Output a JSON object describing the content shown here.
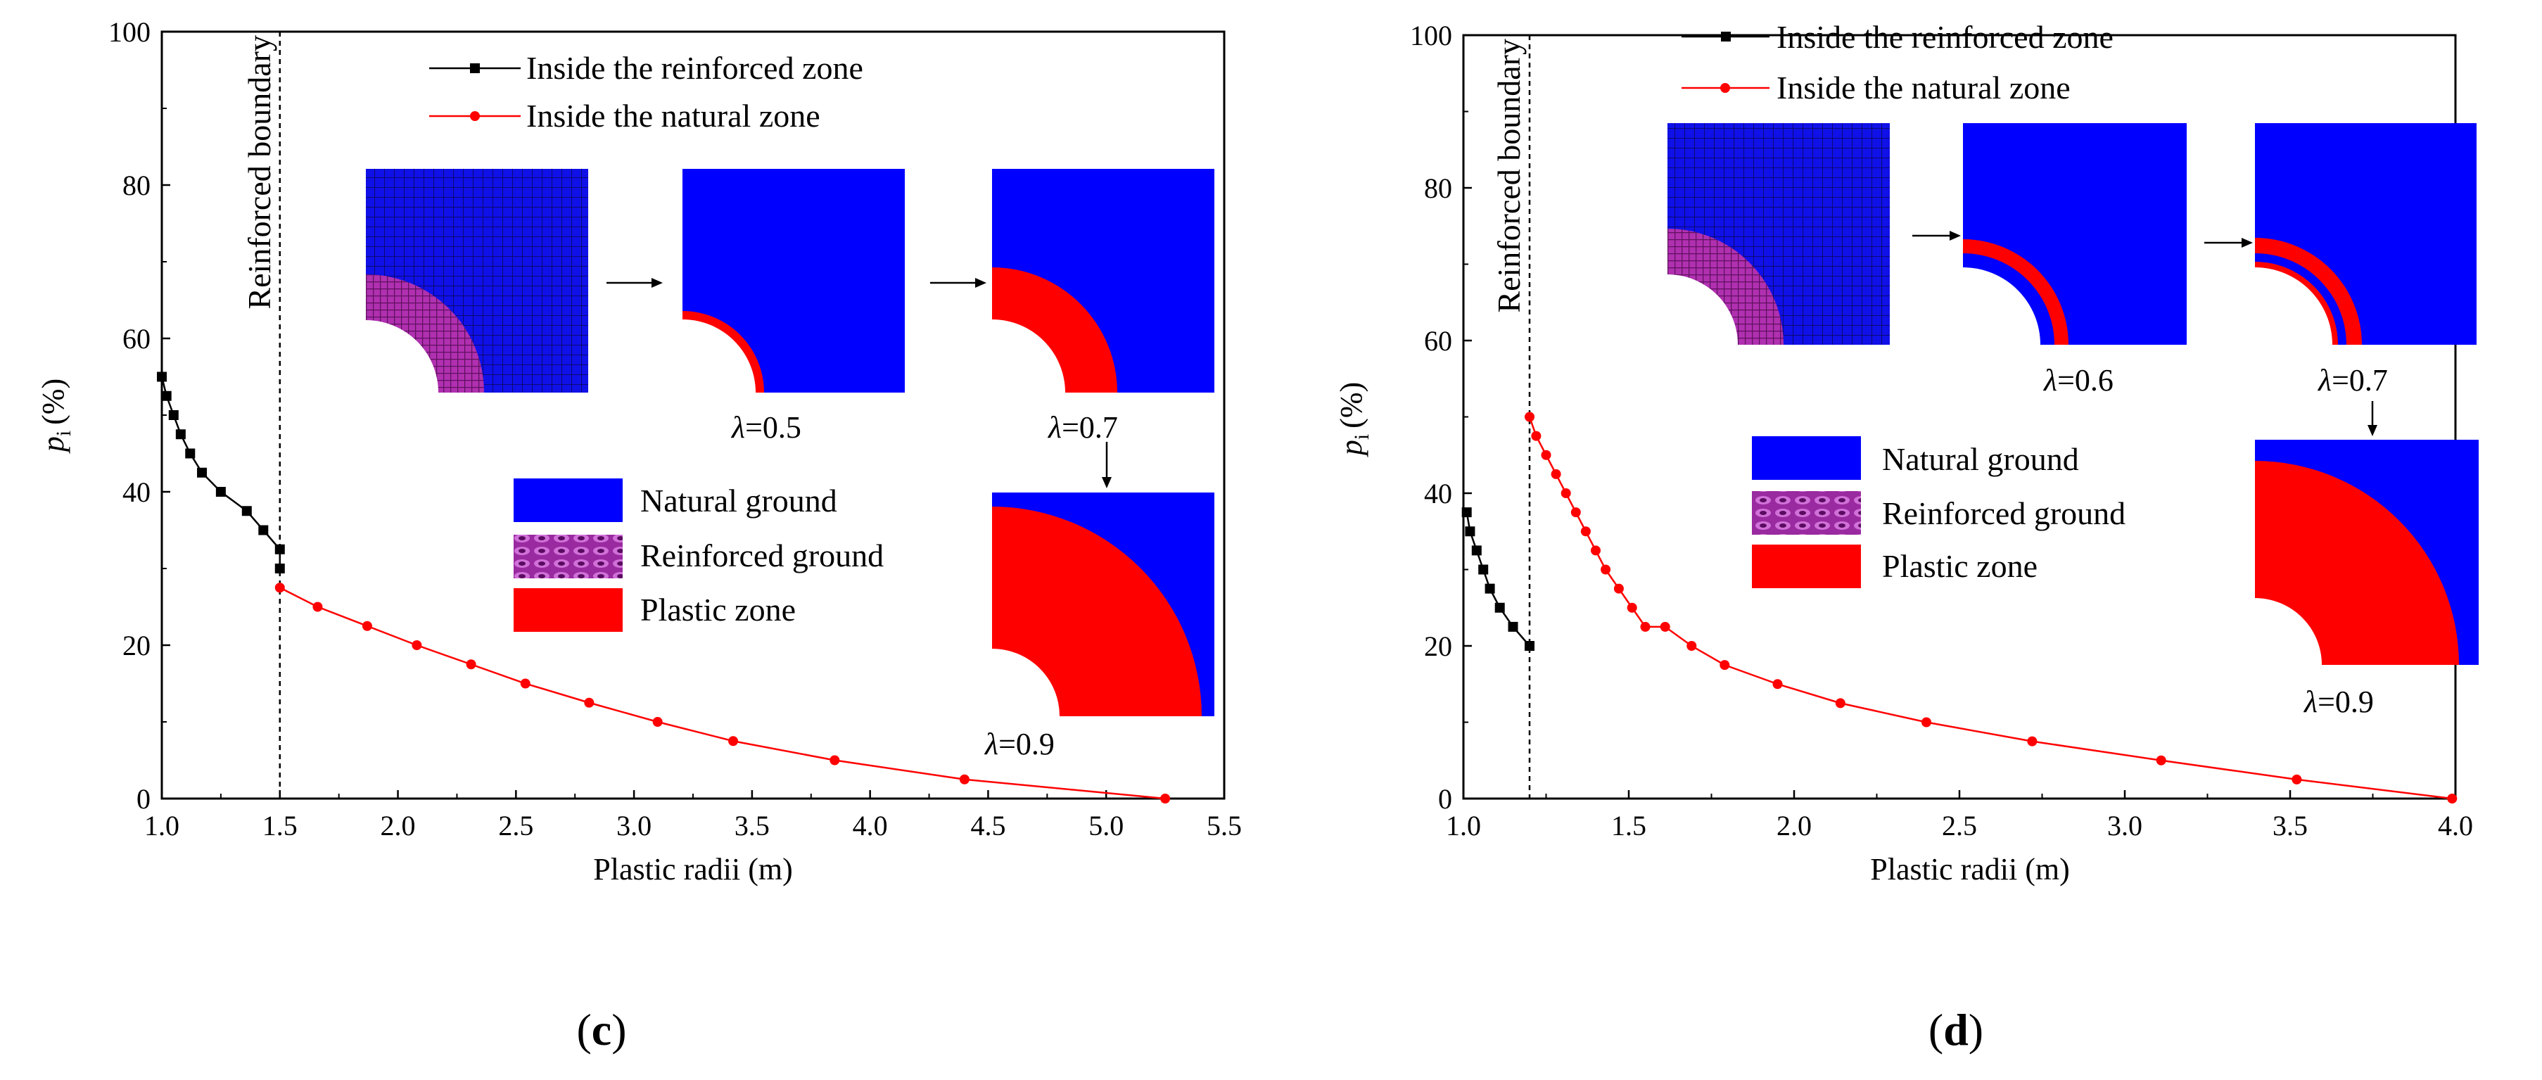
{
  "colors": {
    "reinforced_series": "#000000",
    "natural_series": "#ff0000",
    "natural_ground": "#0000ff",
    "plastic_zone": "#ff0000",
    "reinforced_ground": "#b030b0"
  },
  "chart_data": [
    {
      "type": "line",
      "caption": "c",
      "xlabel": "Plastic radii (m)",
      "ylabel": "p",
      "ylabel_sub": "i",
      "ylabel_unit": "(%)",
      "xlim": [
        1.0,
        5.5
      ],
      "ylim": [
        0,
        100
      ],
      "xticks": [
        "1.0",
        "1.5",
        "2.0",
        "2.5",
        "3.0",
        "3.5",
        "4.0",
        "4.5",
        "5.0",
        "5.5"
      ],
      "yticks": [
        "0",
        "20",
        "40",
        "60",
        "80",
        "100"
      ],
      "boundary": {
        "x": 1.5,
        "label": "Reinforced boundary"
      },
      "series": [
        {
          "name": "Inside the reinforced zone",
          "color": "#000000",
          "marker": "square",
          "x": [
            1.0,
            1.02,
            1.05,
            1.08,
            1.12,
            1.17,
            1.25,
            1.36,
            1.43,
            1.5,
            1.5
          ],
          "y": [
            55,
            52.5,
            50,
            47.5,
            45,
            42.5,
            40,
            37.5,
            35,
            32.5,
            30
          ]
        },
        {
          "name": "Inside the natural zone",
          "color": "#ff0000",
          "marker": "circle",
          "x": [
            1.5,
            1.66,
            1.87,
            2.08,
            2.31,
            2.54,
            2.81,
            3.1,
            3.42,
            3.85,
            4.4,
            5.25
          ],
          "y": [
            27.5,
            25,
            22.5,
            20,
            17.5,
            15,
            12.5,
            10,
            7.5,
            5,
            2.5,
            0
          ]
        }
      ],
      "insets": [
        {
          "kind": "mesh",
          "label": ""
        },
        {
          "kind": "plastic",
          "inner": 0.2,
          "outer": 0.26,
          "label_prefix": "λ",
          "label_value": "=0.5"
        },
        {
          "kind": "plastic",
          "inner": 0.2,
          "outer": 0.52,
          "label_prefix": "λ",
          "label_value": "=0.7"
        },
        {
          "kind": "plastic",
          "inner": 0.33,
          "outer": 0.93,
          "label_prefix": "λ",
          "label_value": "=0.9"
        }
      ],
      "zone_legend": [
        "Natural ground",
        "Reinforced ground",
        "Plastic zone"
      ]
    },
    {
      "type": "line",
      "caption": "d",
      "xlabel": "Plastic radii (m)",
      "ylabel": "p",
      "ylabel_sub": "i",
      "ylabel_unit": "(%)",
      "xlim": [
        1.0,
        4.0
      ],
      "ylim": [
        0,
        100
      ],
      "xticks": [
        "1.0",
        "1.5",
        "2.0",
        "2.5",
        "3.0",
        "3.5",
        "4.0"
      ],
      "yticks": [
        "0",
        "20",
        "40",
        "60",
        "80",
        "100"
      ],
      "boundary": {
        "x": 1.2,
        "label": "Reinforced boundary"
      },
      "series": [
        {
          "name": "Inside the reinforced zone",
          "color": "#000000",
          "marker": "square",
          "x": [
            1.01,
            1.02,
            1.04,
            1.06,
            1.08,
            1.11,
            1.15,
            1.2
          ],
          "y": [
            37.5,
            35,
            32.5,
            30,
            27.5,
            25,
            22.5,
            20
          ]
        },
        {
          "name": "Inside the natural zone",
          "color": "#ff0000",
          "marker": "circle",
          "x": [
            1.2,
            1.22,
            1.25,
            1.28,
            1.31,
            1.34,
            1.37,
            1.4,
            1.43,
            1.47,
            1.51,
            1.55,
            1.61,
            1.69,
            1.79,
            1.95,
            2.14,
            2.4,
            2.72,
            3.11,
            3.52,
            3.99
          ],
          "y": [
            50,
            47.5,
            45,
            42.5,
            40,
            37.5,
            35,
            32.5,
            30,
            27.5,
            25,
            22.5,
            22.5,
            20,
            17.5,
            15,
            12.5,
            10,
            7.5,
            5,
            2.5,
            0
          ]
        }
      ],
      "insets": [
        {
          "kind": "mesh",
          "label": ""
        },
        {
          "kind": "ring",
          "inner": 0.22,
          "ring_in": 0.28,
          "ring_out": 0.36,
          "label_prefix": "λ",
          "label_value": "=0.6"
        },
        {
          "kind": "ring",
          "inner": 0.22,
          "ring_in": 0.28,
          "ring_out": 0.36,
          "gap_in": 0.24,
          "label_prefix": "λ",
          "label_value": "=0.7"
        },
        {
          "kind": "plastic",
          "inner": 0.34,
          "outer": 0.96,
          "label_prefix": "λ",
          "label_value": "=0.9"
        }
      ],
      "zone_legend": [
        "Natural ground",
        "Reinforced ground",
        "Plastic zone"
      ]
    }
  ]
}
